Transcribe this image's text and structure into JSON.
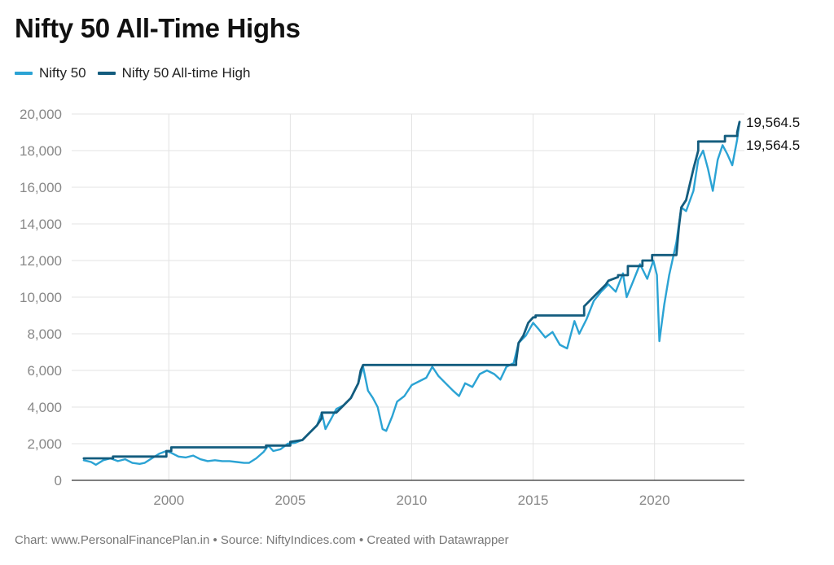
{
  "title": "Nifty 50 All-Time Highs",
  "legend": [
    {
      "label": "Nifty 50",
      "color": "#2ba3d4"
    },
    {
      "label": "Nifty 50 All-time High",
      "color": "#135c7e"
    }
  ],
  "footer": {
    "chart_credit": "Chart: www.PersonalFinancePlan.in",
    "source": "Source: NiftyIndices.com",
    "tool": "Created with Datawrapper"
  },
  "chart_data": {
    "type": "line",
    "title": "Nifty 50 All-Time Highs",
    "xlabel": "",
    "ylabel": "",
    "xlim": [
      1996.0,
      2023.7
    ],
    "ylim": [
      0,
      20000
    ],
    "x_ticks": [
      2000,
      2005,
      2010,
      2015,
      2020
    ],
    "x_tick_labels": [
      "2000",
      "2005",
      "2010",
      "2015",
      "2020"
    ],
    "y_ticks": [
      0,
      2000,
      4000,
      6000,
      8000,
      10000,
      12000,
      14000,
      16000,
      18000,
      20000
    ],
    "y_tick_labels": [
      "0",
      "2,000",
      "4,000",
      "6,000",
      "8,000",
      "10,000",
      "12,000",
      "14,000",
      "16,000",
      "18,000",
      "20,000"
    ],
    "grid": true,
    "series": [
      {
        "name": "Nifty 50",
        "color": "#2ba3d4",
        "x": [
          1996.5,
          1996.8,
          1997.0,
          1997.3,
          1997.6,
          1997.9,
          1998.2,
          1998.5,
          1998.8,
          1999.0,
          1999.3,
          1999.6,
          1999.9,
          2000.1,
          2000.4,
          2000.7,
          2001.0,
          2001.3,
          2001.6,
          2001.9,
          2002.2,
          2002.5,
          2002.8,
          2003.1,
          2003.3,
          2003.6,
          2003.9,
          2004.1,
          2004.3,
          2004.6,
          2004.9,
          2005.2,
          2005.5,
          2005.8,
          2006.1,
          2006.3,
          2006.45,
          2006.7,
          2006.9,
          2007.2,
          2007.5,
          2007.8,
          2008.0,
          2008.2,
          2008.4,
          2008.6,
          2008.8,
          2008.95,
          2009.2,
          2009.4,
          2009.7,
          2010.0,
          2010.3,
          2010.6,
          2010.85,
          2011.1,
          2011.4,
          2011.7,
          2011.95,
          2012.2,
          2012.5,
          2012.8,
          2013.1,
          2013.4,
          2013.65,
          2013.9,
          2014.2,
          2014.4,
          2014.7,
          2015.0,
          2015.2,
          2015.5,
          2015.8,
          2016.1,
          2016.4,
          2016.7,
          2016.9,
          2017.2,
          2017.5,
          2017.8,
          2018.1,
          2018.4,
          2018.7,
          2018.85,
          2019.1,
          2019.4,
          2019.7,
          2019.95,
          2020.1,
          2020.2,
          2020.4,
          2020.6,
          2020.9,
          2021.1,
          2021.3,
          2021.6,
          2021.8,
          2022.0,
          2022.2,
          2022.4,
          2022.6,
          2022.8,
          2023.0,
          2023.2,
          2023.4,
          2023.5
        ],
        "values": [
          1100,
          1000,
          850,
          1100,
          1200,
          1050,
          1150,
          950,
          900,
          950,
          1200,
          1450,
          1600,
          1500,
          1300,
          1250,
          1350,
          1150,
          1050,
          1100,
          1050,
          1050,
          1000,
          950,
          950,
          1200,
          1550,
          1900,
          1600,
          1700,
          2000,
          2050,
          2200,
          2600,
          3000,
          3700,
          2800,
          3400,
          3900,
          4100,
          4500,
          5300,
          6200,
          4900,
          4500,
          4000,
          2800,
          2700,
          3500,
          4300,
          4600,
          5200,
          5400,
          5600,
          6200,
          5700,
          5300,
          4900,
          4600,
          5300,
          5100,
          5800,
          6000,
          5800,
          5500,
          6200,
          6400,
          7500,
          7900,
          8600,
          8300,
          7800,
          8100,
          7400,
          7200,
          8700,
          8000,
          8800,
          9800,
          10300,
          10700,
          10300,
          11300,
          10000,
          10800,
          11800,
          11000,
          12000,
          11200,
          7600,
          9600,
          11200,
          13000,
          14900,
          14700,
          15800,
          17500,
          18000,
          17000,
          15800,
          17500,
          18300,
          17800,
          17200,
          18600,
          19564.5
        ]
      },
      {
        "name": "Nifty 50 All-time High",
        "color": "#135c7e",
        "x": [
          1996.5,
          1997.7,
          1997.7,
          1999.9,
          1999.9,
          2000.1,
          2000.1,
          2004.0,
          2004.0,
          2005.0,
          2005.0,
          2005.5,
          2005.8,
          2006.1,
          2006.3,
          2006.3,
          2006.9,
          2007.2,
          2007.5,
          2007.8,
          2007.9,
          2008.0,
          2008.0,
          2014.3,
          2014.3,
          2014.4,
          2014.6,
          2014.8,
          2015.0,
          2015.1,
          2015.1,
          2017.1,
          2017.1,
          2017.4,
          2017.7,
          2018.0,
          2018.1,
          2018.5,
          2018.5,
          2018.9,
          2018.9,
          2019.5,
          2019.5,
          2019.9,
          2019.9,
          2020.9,
          2021.0,
          2021.1,
          2021.3,
          2021.3,
          2021.6,
          2021.8,
          2021.8,
          2022.9,
          2022.9,
          2023.4,
          2023.4,
          2023.5
        ],
        "values": [
          1200,
          1200,
          1300,
          1300,
          1600,
          1600,
          1800,
          1800,
          1900,
          1900,
          2100,
          2200,
          2600,
          3000,
          3400,
          3700,
          3700,
          4100,
          4500,
          5300,
          6000,
          6300,
          6300,
          6300,
          6500,
          7500,
          7900,
          8600,
          8900,
          8900,
          9000,
          9000,
          9500,
          9900,
          10300,
          10700,
          10900,
          11100,
          11200,
          11200,
          11700,
          11700,
          12000,
          12000,
          12300,
          12300,
          13800,
          14900,
          15300,
          15300,
          17000,
          18000,
          18500,
          18500,
          18800,
          18800,
          19000,
          19564.5
        ]
      }
    ],
    "end_labels": [
      "19,564.5",
      "19,564.5"
    ]
  }
}
